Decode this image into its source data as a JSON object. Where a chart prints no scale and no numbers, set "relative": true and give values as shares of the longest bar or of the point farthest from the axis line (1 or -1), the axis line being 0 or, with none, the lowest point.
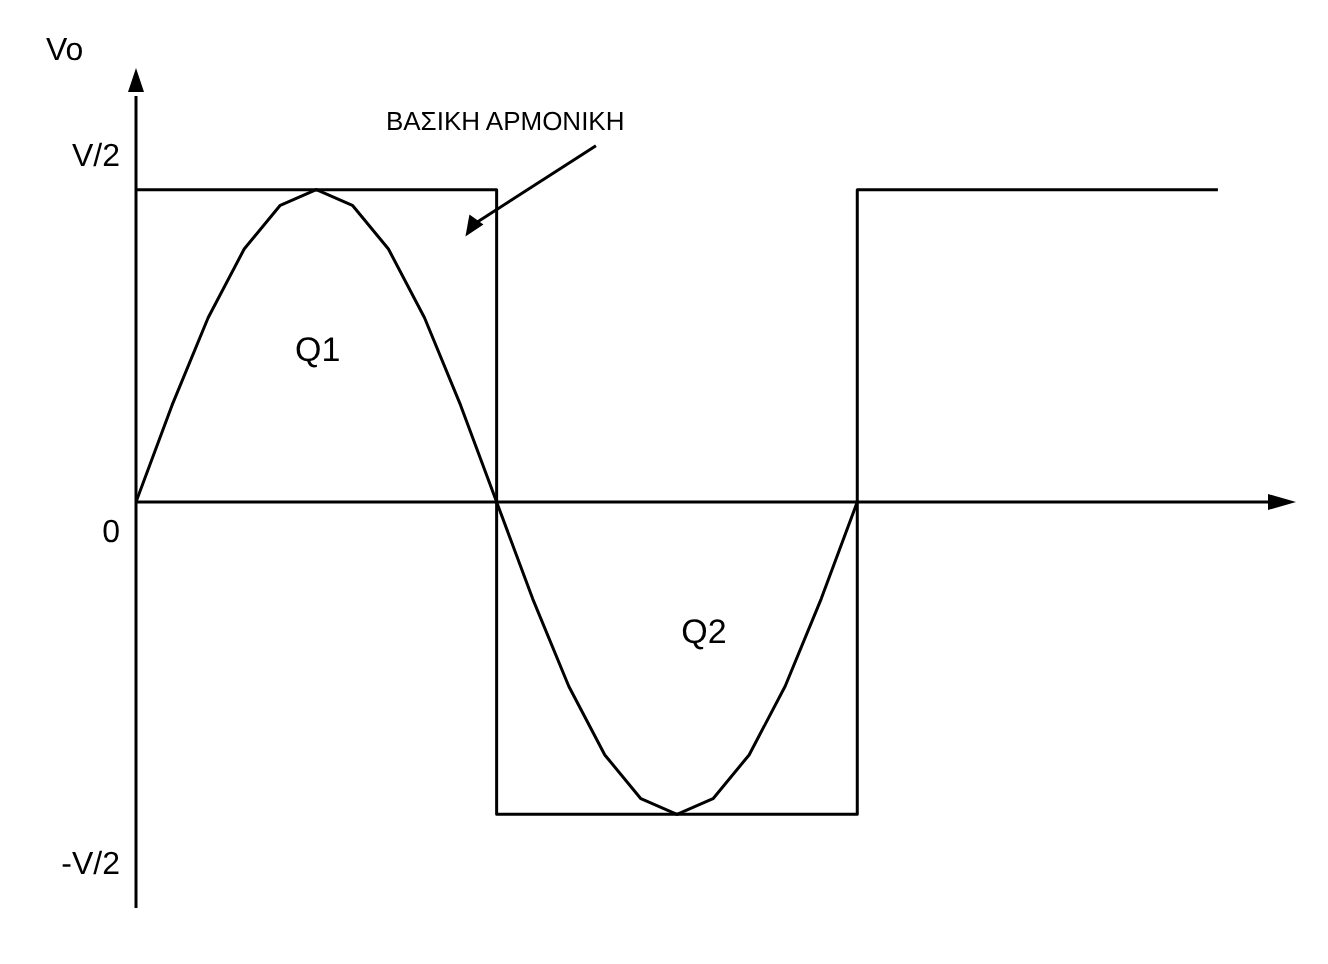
{
  "chart_data": {
    "type": "line",
    "ylabel": "Vo",
    "relative": true,
    "categories": [
      null,
      null,
      null,
      null,
      null,
      null,
      null,
      null,
      null,
      null,
      null,
      null,
      null,
      null,
      null,
      null,
      null,
      null,
      null,
      null,
      null,
      null,
      null,
      null,
      null,
      null,
      null,
      null,
      null,
      null,
      null
    ],
    "series": [
      {
        "type": "step",
        "color": "#000000",
        "values": [
          1,
          1,
          1,
          1,
          1,
          1,
          1,
          1,
          1,
          1,
          -1,
          -1,
          -1,
          -1,
          -1,
          -1,
          -1,
          -1,
          -1,
          -1,
          1,
          1,
          1,
          1,
          1,
          1,
          1,
          1,
          1,
          1,
          1
        ]
      },
      {
        "color": "#000000",
        "values": [
          0,
          0.31,
          0.59,
          0.81,
          0.95,
          1,
          0.95,
          0.81,
          0.59,
          0.31,
          0,
          -0.31,
          -0.59,
          -0.81,
          -0.95,
          -1,
          -0.95,
          -0.81,
          -0.59,
          -0.31,
          0,
          null,
          null,
          null,
          null,
          null,
          null,
          null,
          null,
          null,
          null
        ]
      }
    ],
    "annotations": [
      "ΒΑΣΙΚΗ ΑΡΜΟΝΙΚΗ",
      "Q1",
      "Q2",
      "V/2",
      "0",
      "-V/2"
    ],
    "grid": false,
    "legend": false,
    "marker": "none",
    "line_style": "solid"
  }
}
